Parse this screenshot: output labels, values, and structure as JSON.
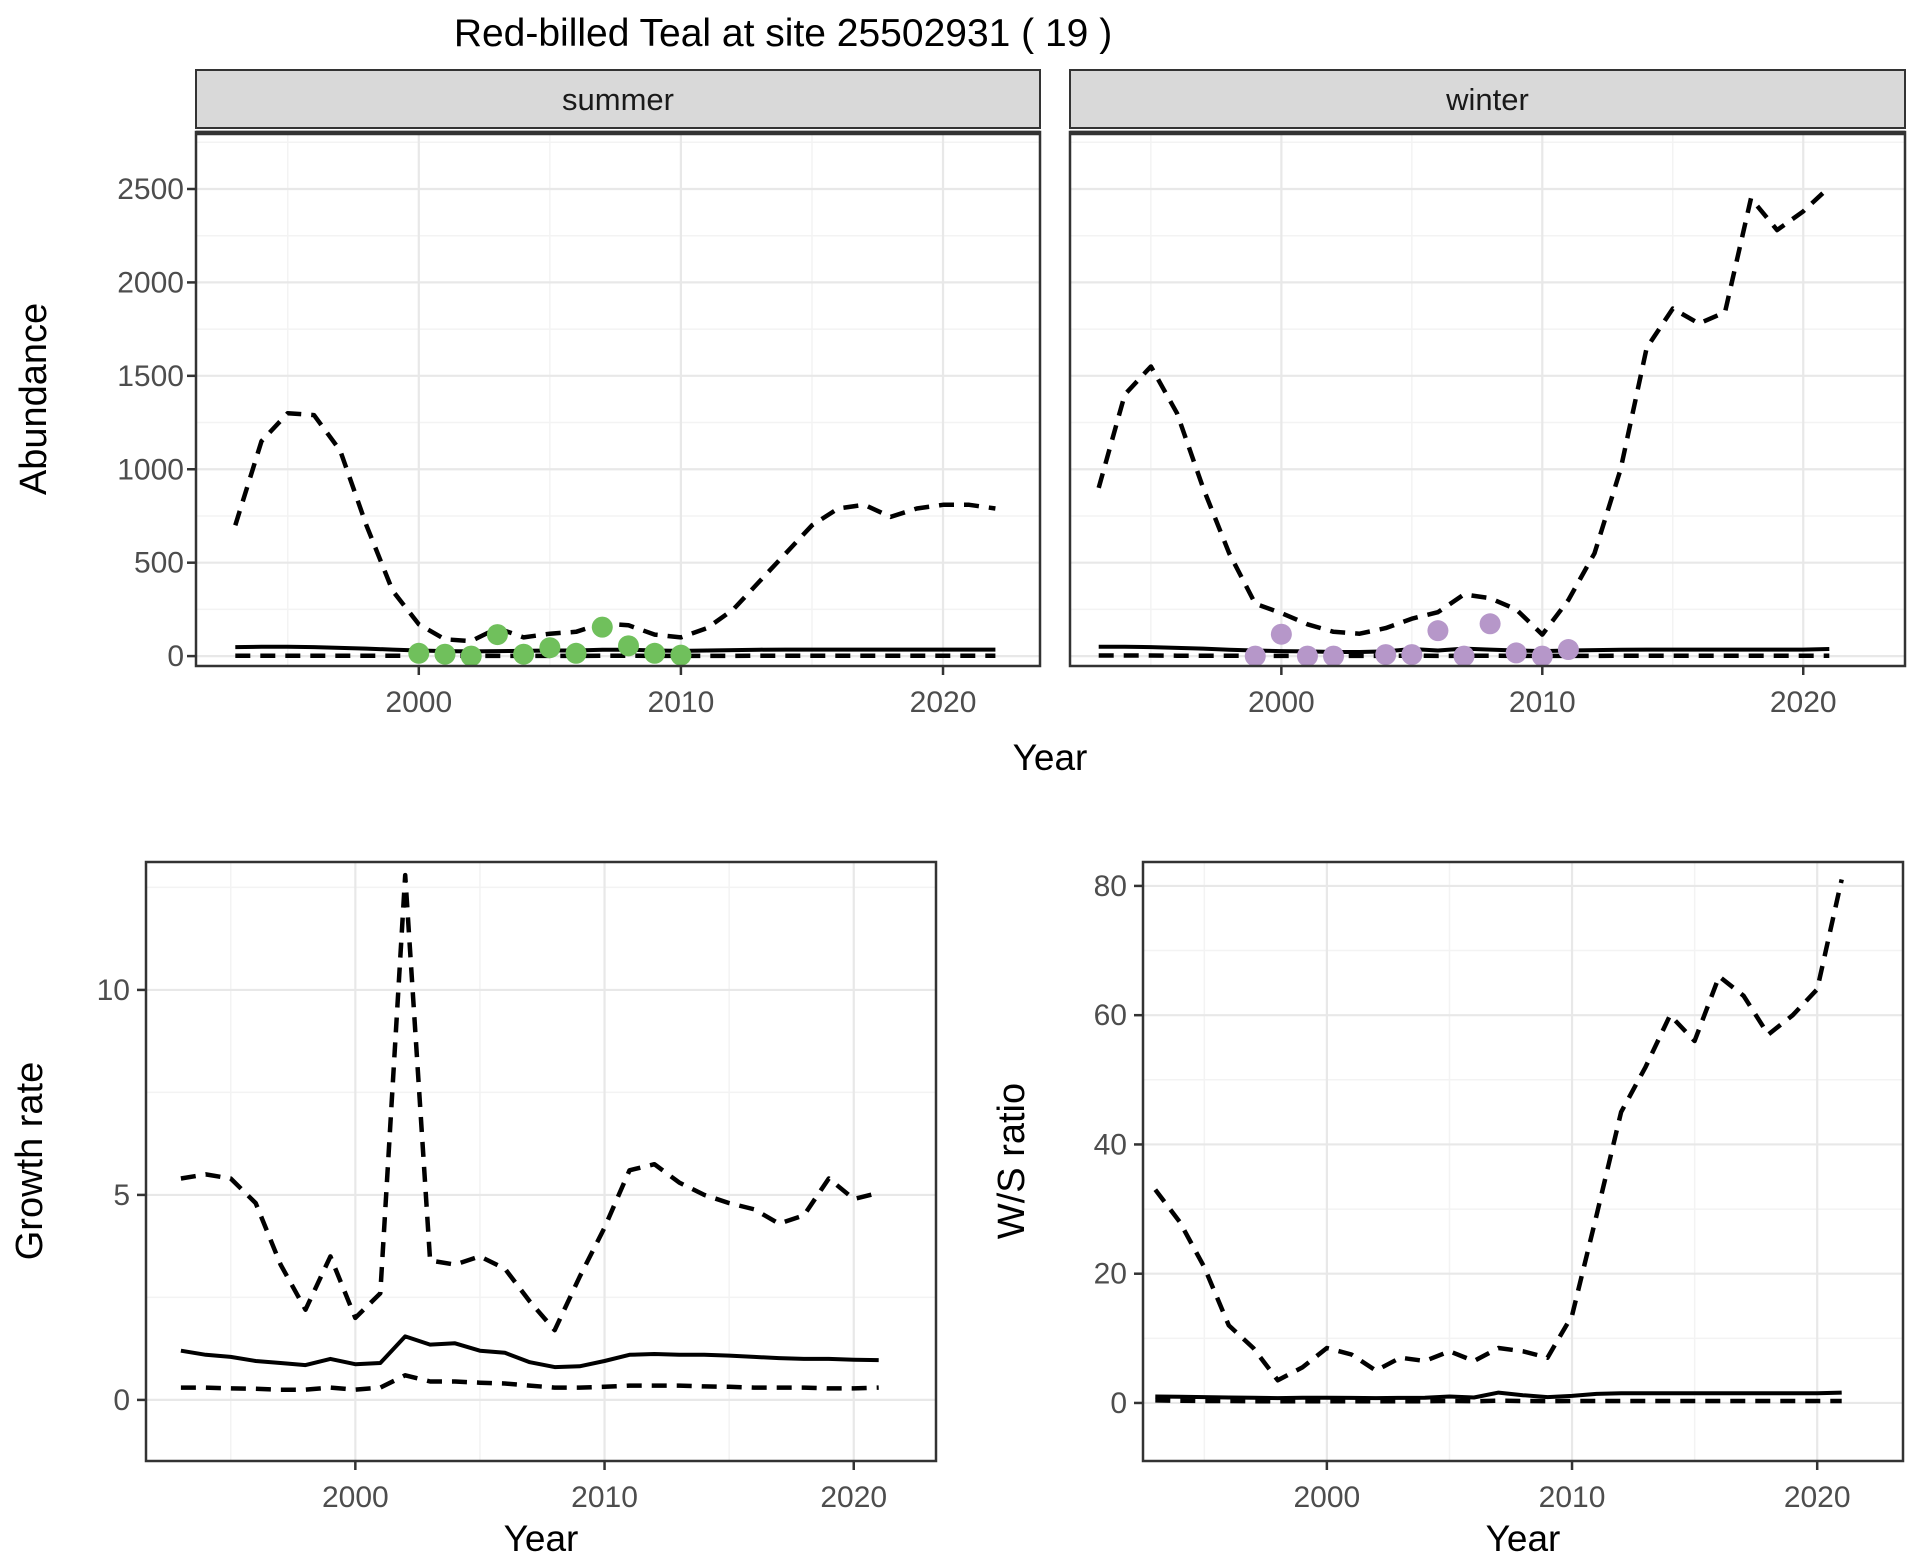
{
  "title": "Red-billed Teal at site 25502931 ( 19 )",
  "colors": {
    "summer_points": "#70c05c",
    "winter_points": "#b697c9",
    "strip_bg": "#d9d9d9",
    "panel_border": "#333333",
    "grid_major": "#e8e8e8",
    "grid_minor": "#f3f3f3",
    "axis_text": "#4d4d4d",
    "line": "#000000",
    "title_text": "#000000"
  },
  "top_row": {
    "ylabel": "Abundance",
    "xlabel": "Year",
    "facets": [
      "summer",
      "winter"
    ]
  },
  "chart_data": [
    {
      "id": "abundance-summer",
      "type": "line",
      "facet": "summer",
      "xlabel": "Year",
      "ylabel": "Abundance",
      "x_ticks": [
        2000,
        2010,
        2020
      ],
      "y_ticks": [
        0,
        500,
        1000,
        1500,
        2000,
        2500
      ],
      "xlim": [
        1991.5,
        2023.7
      ],
      "ylim": [
        -53,
        2805
      ],
      "grid": true,
      "legend": "none",
      "series": [
        {
          "name": "upper-ci",
          "style": "dashed",
          "x": [
            1993,
            1994,
            1995,
            1996,
            1997,
            1998,
            1999,
            2000,
            2001,
            2002,
            2003,
            2004,
            2005,
            2006,
            2007,
            2008,
            2009,
            2010,
            2011,
            2012,
            2013,
            2014,
            2015,
            2016,
            2017,
            2018,
            2019,
            2020,
            2021,
            2022
          ],
          "y": [
            700,
            1150,
            1300,
            1290,
            1100,
            700,
            350,
            170,
            90,
            80,
            150,
            100,
            120,
            130,
            175,
            165,
            115,
            100,
            150,
            250,
            400,
            550,
            700,
            790,
            810,
            745,
            790,
            810,
            810,
            790
          ]
        },
        {
          "name": "median",
          "style": "solid",
          "x": [
            1993,
            1994,
            1995,
            1996,
            1997,
            1998,
            1999,
            2000,
            2001,
            2002,
            2003,
            2004,
            2005,
            2006,
            2007,
            2008,
            2009,
            2010,
            2011,
            2012,
            2013,
            2014,
            2015,
            2016,
            2017,
            2018,
            2019,
            2020,
            2021,
            2022
          ],
          "y": [
            48,
            50,
            50,
            48,
            44,
            40,
            35,
            30,
            27,
            25,
            27,
            28,
            30,
            30,
            34,
            34,
            30,
            28,
            30,
            32,
            34,
            35,
            35,
            35,
            35,
            35,
            35,
            35,
            35,
            35
          ]
        },
        {
          "name": "lower-ci",
          "style": "dashed",
          "x": [
            1993,
            1994,
            1995,
            1996,
            1997,
            1998,
            1999,
            2000,
            2001,
            2002,
            2003,
            2004,
            2005,
            2006,
            2007,
            2008,
            2009,
            2010,
            2011,
            2012,
            2013,
            2014,
            2015,
            2016,
            2017,
            2018,
            2019,
            2020,
            2021,
            2022
          ],
          "y": [
            2,
            2,
            2,
            2,
            2,
            2,
            2,
            1,
            1,
            1,
            1,
            1,
            1,
            1,
            2,
            2,
            1,
            1,
            1,
            1,
            2,
            2,
            2,
            2,
            2,
            2,
            2,
            2,
            2,
            2
          ]
        },
        {
          "name": "observed-counts",
          "style": "points",
          "color": "#70c05c",
          "x": [
            2000,
            2001,
            2002,
            2003,
            2004,
            2005,
            2006,
            2007,
            2008,
            2009,
            2010
          ],
          "y": [
            15,
            10,
            0,
            115,
            10,
            45,
            15,
            155,
            55,
            15,
            5
          ]
        }
      ]
    },
    {
      "id": "abundance-winter",
      "type": "line",
      "facet": "winter",
      "xlabel": "Year",
      "ylabel": "Abundance",
      "x_ticks": [
        2000,
        2010,
        2020
      ],
      "y_ticks": [
        0,
        500,
        1000,
        1500,
        2000,
        2500
      ],
      "xlim": [
        1991.9,
        2023.9
      ],
      "ylim": [
        -53,
        2805
      ],
      "grid": true,
      "legend": "none",
      "series": [
        {
          "name": "upper-ci",
          "style": "dashed",
          "x": [
            1993,
            1994,
            1995,
            1996,
            1997,
            1998,
            1999,
            2000,
            2001,
            2002,
            2003,
            2004,
            2005,
            2006,
            2007,
            2008,
            2009,
            2010,
            2011,
            2012,
            2013,
            2014,
            2015,
            2016,
            2017,
            2018,
            2019,
            2020,
            2021
          ],
          "y": [
            900,
            1400,
            1550,
            1300,
            900,
            550,
            280,
            230,
            170,
            130,
            120,
            150,
            200,
            235,
            330,
            310,
            250,
            115,
            300,
            550,
            1000,
            1650,
            1860,
            1780,
            1840,
            2450,
            2280,
            2380,
            2510
          ]
        },
        {
          "name": "median",
          "style": "solid",
          "x": [
            1993,
            1994,
            1995,
            1996,
            1997,
            1998,
            1999,
            2000,
            2001,
            2002,
            2003,
            2004,
            2005,
            2006,
            2007,
            2008,
            2009,
            2010,
            2011,
            2012,
            2013,
            2014,
            2015,
            2016,
            2017,
            2018,
            2019,
            2020,
            2021
          ],
          "y": [
            50,
            50,
            48,
            44,
            40,
            34,
            30,
            27,
            25,
            22,
            22,
            25,
            38,
            30,
            40,
            35,
            30,
            27,
            30,
            32,
            34,
            35,
            35,
            35,
            35,
            35,
            35,
            35,
            38
          ]
        },
        {
          "name": "lower-ci",
          "style": "dashed",
          "x": [
            1993,
            1994,
            1995,
            1996,
            1997,
            1998,
            1999,
            2000,
            2001,
            2002,
            2003,
            2004,
            2005,
            2006,
            2007,
            2008,
            2009,
            2010,
            2011,
            2012,
            2013,
            2014,
            2015,
            2016,
            2017,
            2018,
            2019,
            2020,
            2021
          ],
          "y": [
            3,
            3,
            3,
            2,
            2,
            2,
            1,
            1,
            1,
            1,
            1,
            1,
            2,
            1,
            2,
            2,
            1,
            1,
            1,
            1,
            2,
            2,
            2,
            2,
            2,
            2,
            2,
            2,
            2
          ]
        },
        {
          "name": "observed-counts",
          "style": "points",
          "color": "#b697c9",
          "x": [
            1999,
            2000,
            2001,
            2002,
            2004,
            2005,
            2006,
            2007,
            2008,
            2009,
            2010,
            2011
          ],
          "y": [
            0,
            117,
            0,
            0,
            8,
            8,
            136,
            0,
            173,
            17,
            0,
            35
          ]
        }
      ]
    },
    {
      "id": "growth-rate",
      "type": "line",
      "facet": null,
      "xlabel": "Year",
      "ylabel": "Growth rate",
      "x_ticks": [
        2000,
        2010,
        2020
      ],
      "y_ticks": [
        0,
        5,
        10
      ],
      "xlim": [
        1991.6,
        2023.3
      ],
      "ylim": [
        -1.49,
        13.12
      ],
      "grid": true,
      "legend": "none",
      "series": [
        {
          "name": "upper-ci",
          "style": "dashed",
          "x": [
            1993,
            1994,
            1995,
            1996,
            1997,
            1998,
            1999,
            2000,
            2001,
            2002,
            2003,
            2004,
            2005,
            2006,
            2007,
            2008,
            2009,
            2010,
            2011,
            2012,
            2013,
            2014,
            2015,
            2016,
            2017,
            2018,
            2019,
            2020,
            2021
          ],
          "y": [
            5.4,
            5.5,
            5.4,
            4.8,
            3.3,
            2.2,
            3.5,
            2.0,
            2.6,
            12.8,
            3.4,
            3.3,
            3.5,
            3.2,
            2.4,
            1.7,
            3.0,
            4.2,
            5.6,
            5.75,
            5.3,
            5.0,
            4.8,
            4.65,
            4.3,
            4.5,
            5.4,
            4.9,
            5.05
          ]
        },
        {
          "name": "median",
          "style": "solid",
          "x": [
            1993,
            1994,
            1995,
            1996,
            1997,
            1998,
            1999,
            2000,
            2001,
            2002,
            2003,
            2004,
            2005,
            2006,
            2007,
            2008,
            2009,
            2010,
            2011,
            2012,
            2013,
            2014,
            2015,
            2016,
            2017,
            2018,
            2019,
            2020,
            2021
          ],
          "y": [
            1.2,
            1.1,
            1.05,
            0.95,
            0.9,
            0.85,
            1.0,
            0.87,
            0.9,
            1.55,
            1.35,
            1.38,
            1.2,
            1.15,
            0.92,
            0.8,
            0.82,
            0.95,
            1.1,
            1.12,
            1.1,
            1.1,
            1.08,
            1.05,
            1.02,
            1.0,
            1.0,
            0.98,
            0.97
          ]
        },
        {
          "name": "lower-ci",
          "style": "dashed",
          "x": [
            1993,
            1994,
            1995,
            1996,
            1997,
            1998,
            1999,
            2000,
            2001,
            2002,
            2003,
            2004,
            2005,
            2006,
            2007,
            2008,
            2009,
            2010,
            2011,
            2012,
            2013,
            2014,
            2015,
            2016,
            2017,
            2018,
            2019,
            2020,
            2021
          ],
          "y": [
            0.3,
            0.3,
            0.28,
            0.27,
            0.25,
            0.25,
            0.3,
            0.25,
            0.3,
            0.6,
            0.45,
            0.45,
            0.42,
            0.4,
            0.35,
            0.3,
            0.3,
            0.32,
            0.35,
            0.35,
            0.35,
            0.33,
            0.32,
            0.3,
            0.3,
            0.3,
            0.28,
            0.28,
            0.3
          ]
        }
      ]
    },
    {
      "id": "ws-ratio",
      "type": "line",
      "facet": null,
      "xlabel": "Year",
      "ylabel": "W/S ratio",
      "x_ticks": [
        2000,
        2010,
        2020
      ],
      "y_ticks": [
        0,
        20,
        40,
        60,
        80
      ],
      "xlim": [
        1992.5,
        2023.5
      ],
      "ylim": [
        -8.98,
        83.7
      ],
      "grid": true,
      "legend": "none",
      "series": [
        {
          "name": "upper-ci",
          "style": "dashed",
          "x": [
            1993,
            1994,
            1995,
            1996,
            1997,
            1998,
            1999,
            2000,
            2001,
            2002,
            2003,
            2004,
            2005,
            2006,
            2007,
            2008,
            2009,
            2010,
            2011,
            2012,
            2013,
            2014,
            2015,
            2016,
            2017,
            2018,
            2019,
            2020,
            2021
          ],
          "y": [
            33,
            28,
            21,
            12,
            8.5,
            3.5,
            5.5,
            8.5,
            7.5,
            5,
            7,
            6.5,
            8,
            6.5,
            8.5,
            8,
            7,
            13.5,
            29,
            45,
            52,
            60,
            56,
            66,
            63,
            57,
            60,
            64,
            81
          ]
        },
        {
          "name": "median",
          "style": "solid",
          "x": [
            1993,
            1994,
            1995,
            1996,
            1997,
            1998,
            1999,
            2000,
            2001,
            2002,
            2003,
            2004,
            2005,
            2006,
            2007,
            2008,
            2009,
            2010,
            2011,
            2012,
            2013,
            2014,
            2015,
            2016,
            2017,
            2018,
            2019,
            2020,
            2021
          ],
          "y": [
            1.0,
            0.95,
            0.9,
            0.85,
            0.8,
            0.75,
            0.8,
            0.8,
            0.78,
            0.75,
            0.78,
            0.8,
            1.0,
            0.85,
            1.6,
            1.2,
            0.9,
            1.1,
            1.4,
            1.5,
            1.5,
            1.5,
            1.5,
            1.5,
            1.5,
            1.5,
            1.5,
            1.5,
            1.6
          ]
        },
        {
          "name": "lower-ci",
          "style": "dashed",
          "x": [
            1993,
            1994,
            1995,
            1996,
            1997,
            1998,
            1999,
            2000,
            2001,
            2002,
            2003,
            2004,
            2005,
            2006,
            2007,
            2008,
            2009,
            2010,
            2011,
            2012,
            2013,
            2014,
            2015,
            2016,
            2017,
            2018,
            2019,
            2020,
            2021
          ],
          "y": [
            0.4,
            0.35,
            0.3,
            0.3,
            0.28,
            0.25,
            0.28,
            0.28,
            0.26,
            0.25,
            0.26,
            0.28,
            0.3,
            0.28,
            0.35,
            0.3,
            0.28,
            0.3,
            0.3,
            0.3,
            0.3,
            0.3,
            0.3,
            0.3,
            0.3,
            0.3,
            0.3,
            0.3,
            0.3
          ]
        }
      ]
    }
  ]
}
